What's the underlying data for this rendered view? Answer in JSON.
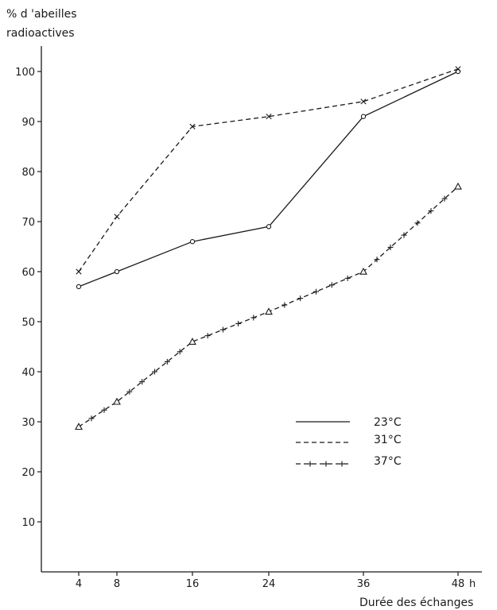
{
  "chart_data": {
    "type": "line",
    "ylabel_line1": "% d 'abeilles",
    "ylabel_line2": "radioactives",
    "xlabel": "Durée des échanges",
    "x_unit": "h",
    "x": [
      4,
      8,
      16,
      24,
      36,
      48
    ],
    "x_ticks": [
      "4",
      "8",
      "16",
      "24",
      "36",
      "48"
    ],
    "y_ticks": [
      "10",
      "20",
      "30",
      "40",
      "50",
      "60",
      "70",
      "80",
      "90",
      "100"
    ],
    "ylim": [
      0,
      100
    ],
    "xlim": [
      0,
      48
    ],
    "grid": false,
    "legend_position": "right-middle",
    "series": [
      {
        "name": "23°C",
        "style": "solid",
        "marker": "circle",
        "values": [
          57,
          60,
          66,
          69,
          91,
          100
        ]
      },
      {
        "name": "31°C",
        "style": "dashed",
        "marker": "x",
        "values": [
          60,
          71,
          89,
          91,
          94,
          100.5
        ]
      },
      {
        "name": "37°C",
        "style": "dash-plus",
        "marker": "triangle",
        "values": [
          29,
          34,
          46,
          52,
          60,
          77
        ]
      }
    ]
  }
}
